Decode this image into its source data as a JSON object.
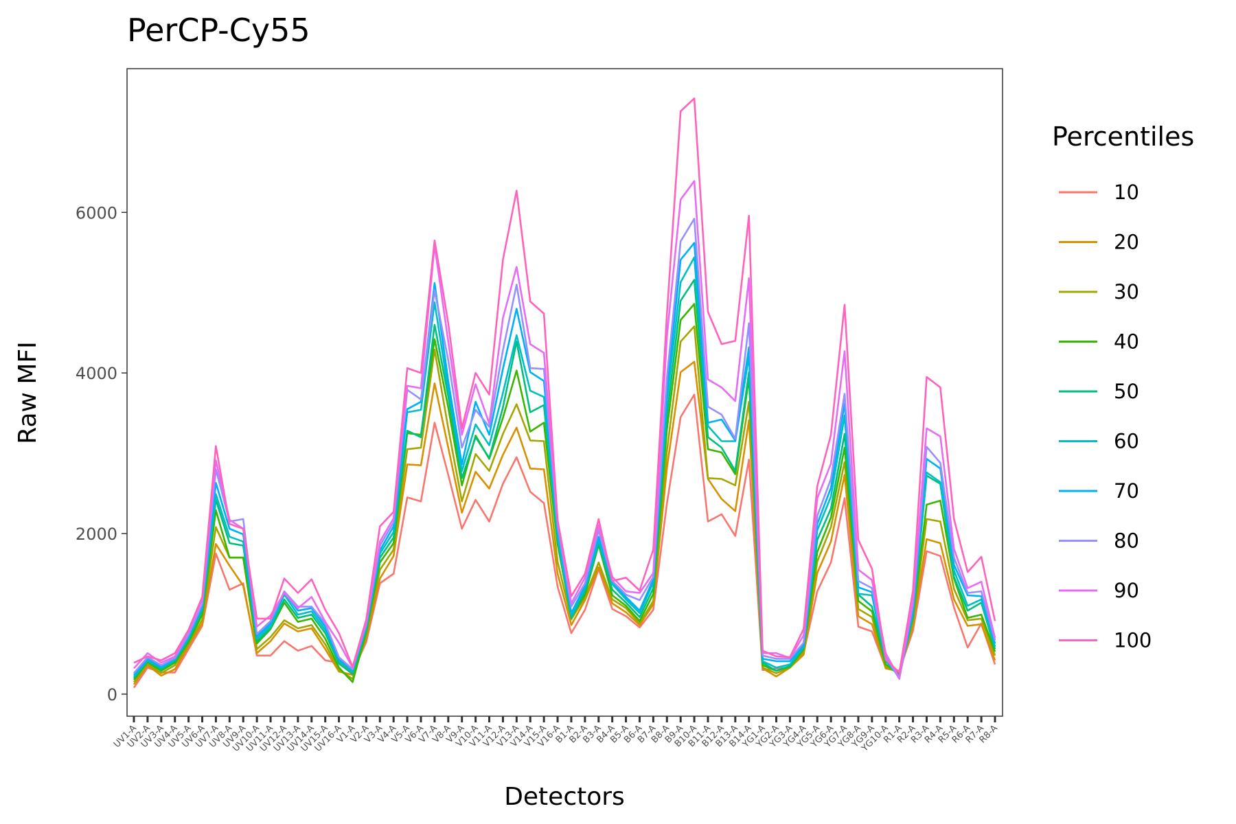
{
  "chart_data": {
    "type": "line",
    "title": "PerCP-Cy55",
    "xlabel": "Detectors",
    "ylabel": "Raw MFI",
    "y_ticks": [
      0,
      2000,
      4000,
      6000
    ],
    "ylim": [
      -275,
      7790
    ],
    "grid": false,
    "legend": {
      "title": "Percentiles",
      "position": "right"
    },
    "categories": [
      "UV1-A",
      "UV2-A",
      "UV3-A",
      "UV4-A",
      "UV5-A",
      "UV6-A",
      "UV7-A",
      "UV8-A",
      "UV9-A",
      "UV10-A",
      "UV11-A",
      "UV12-A",
      "UV13-A",
      "UV14-A",
      "UV15-A",
      "UV16-A",
      "V1-A",
      "V2-A",
      "V3-A",
      "V4-A",
      "V5-A",
      "V6-A",
      "V7-A",
      "V8-A",
      "V9-A",
      "V10-A",
      "V11-A",
      "V12-A",
      "V13-A",
      "V14-A",
      "V15-A",
      "V16-A",
      "B1-A",
      "B2-A",
      "B3-A",
      "B4-A",
      "B5-A",
      "B6-A",
      "B7-A",
      "B8-A",
      "B9-A",
      "B10-A",
      "B11-A",
      "B12-A",
      "B13-A",
      "B14-A",
      "YG1-A",
      "YG2-A",
      "YG3-A",
      "YG4-A",
      "YG5-A",
      "YG6-A",
      "YG7-A",
      "YG8-A",
      "YG9-A",
      "YG10-A",
      "R1-A",
      "R2-A",
      "R3-A",
      "R4-A",
      "R5-A",
      "R6-A",
      "R7-A",
      "R8-A"
    ],
    "series": [
      {
        "name": "10",
        "color": "#F8766D",
        "values": [
          80,
          330,
          270,
          270,
          560,
          850,
          1750,
          1300,
          1380,
          480,
          480,
          660,
          540,
          600,
          420,
          390,
          270,
          650,
          1380,
          1500,
          2450,
          2400,
          3380,
          2730,
          2060,
          2420,
          2150,
          2620,
          2950,
          2520,
          2380,
          1340,
          760,
          1050,
          1560,
          1060,
          970,
          830,
          1050,
          2380,
          3450,
          3730,
          2150,
          2240,
          1970,
          2920,
          300,
          320,
          330,
          510,
          1280,
          1640,
          2440,
          840,
          780,
          330,
          290,
          790,
          1780,
          1720,
          1080,
          580,
          880,
          370
        ]
      },
      {
        "name": "20",
        "color": "#D89000",
        "values": [
          120,
          360,
          230,
          310,
          600,
          880,
          1870,
          1600,
          1350,
          510,
          660,
          880,
          780,
          820,
          560,
          280,
          240,
          700,
          1440,
          1720,
          2860,
          2850,
          3870,
          3070,
          2260,
          2770,
          2560,
          2980,
          3320,
          2810,
          2800,
          1500,
          860,
          1170,
          1580,
          1130,
          1020,
          860,
          1120,
          2820,
          4010,
          4140,
          2680,
          2430,
          2280,
          3410,
          320,
          220,
          330,
          490,
          1510,
          1900,
          2730,
          970,
          870,
          320,
          280,
          850,
          1930,
          1880,
          1180,
          850,
          870,
          420
        ]
      },
      {
        "name": "30",
        "color": "#A3A500",
        "values": [
          150,
          380,
          260,
          360,
          620,
          930,
          2080,
          1700,
          1700,
          560,
          710,
          920,
          820,
          860,
          620,
          300,
          190,
          730,
          1550,
          1800,
          3050,
          3070,
          4290,
          3310,
          2400,
          2990,
          2780,
          3240,
          3610,
          3160,
          3150,
          1650,
          930,
          1210,
          1640,
          1180,
          1070,
          880,
          1160,
          3030,
          4390,
          4580,
          2690,
          2680,
          2600,
          3640,
          330,
          260,
          330,
          530,
          1650,
          2080,
          2890,
          1060,
          960,
          340,
          260,
          900,
          2180,
          2150,
          1310,
          920,
          940,
          480
        ]
      },
      {
        "name": "40",
        "color": "#39B600",
        "values": [
          180,
          400,
          290,
          390,
          650,
          990,
          2290,
          1700,
          1700,
          630,
          810,
          1140,
          900,
          940,
          690,
          330,
          150,
          780,
          1640,
          1880,
          3250,
          3230,
          4420,
          3570,
          2600,
          3220,
          2930,
          3440,
          4030,
          3270,
          3380,
          1870,
          960,
          1240,
          1860,
          1230,
          1100,
          910,
          1250,
          3300,
          4660,
          4860,
          3050,
          3010,
          2740,
          3940,
          360,
          290,
          340,
          560,
          1770,
          2200,
          3070,
          1160,
          1030,
          370,
          250,
          960,
          2360,
          2410,
          1440,
          950,
          990,
          530
        ]
      },
      {
        "name": "50",
        "color": "#00BF7D",
        "values": [
          200,
          410,
          310,
          410,
          680,
          1040,
          2420,
          1880,
          1850,
          660,
          820,
          1180,
          950,
          990,
          760,
          380,
          250,
          810,
          1700,
          1950,
          3280,
          3200,
          4600,
          3710,
          2690,
          3200,
          2940,
          3570,
          4390,
          3510,
          3600,
          1930,
          950,
          1280,
          1870,
          1300,
          1140,
          960,
          1320,
          3470,
          4900,
          5160,
          3200,
          3070,
          2780,
          4010,
          390,
          290,
          350,
          580,
          1920,
          2310,
          3240,
          1240,
          1090,
          410,
          230,
          980,
          2720,
          2620,
          1460,
          1040,
          1140,
          560
        ]
      },
      {
        "name": "60",
        "color": "#00BFC4",
        "values": [
          220,
          420,
          330,
          430,
          700,
          1070,
          2490,
          1960,
          1900,
          690,
          850,
          1240,
          990,
          1030,
          800,
          410,
          280,
          830,
          1750,
          2020,
          3510,
          3540,
          4880,
          3790,
          2780,
          3360,
          3100,
          3750,
          4470,
          3780,
          3700,
          1960,
          980,
          1320,
          1920,
          1370,
          1180,
          1010,
          1390,
          3660,
          5130,
          5440,
          3340,
          3150,
          3150,
          4210,
          410,
          330,
          370,
          590,
          2040,
          2460,
          3470,
          1250,
          1230,
          420,
          210,
          1010,
          2760,
          2640,
          1540,
          1100,
          1180,
          590
        ]
      },
      {
        "name": "70",
        "color": "#00B0F6",
        "values": [
          240,
          440,
          340,
          440,
          720,
          1090,
          2630,
          2060,
          1990,
          720,
          880,
          1270,
          1040,
          1070,
          840,
          430,
          300,
          850,
          1790,
          2090,
          3550,
          3640,
          5120,
          3900,
          2860,
          3640,
          3230,
          4050,
          4800,
          4010,
          3900,
          2040,
          1010,
          1350,
          1960,
          1400,
          1210,
          1040,
          1430,
          3790,
          5410,
          5620,
          3380,
          3420,
          3160,
          4320,
          440,
          410,
          410,
          610,
          2120,
          2570,
          3620,
          1330,
          1270,
          450,
          200,
          1050,
          2930,
          2810,
          1610,
          1230,
          1220,
          630
        ]
      },
      {
        "name": "80",
        "color": "#9590FF",
        "values": [
          260,
          460,
          360,
          450,
          740,
          1120,
          2800,
          2150,
          2180,
          750,
          910,
          1280,
          1090,
          1090,
          880,
          460,
          310,
          870,
          1850,
          2140,
          3790,
          3670,
          5030,
          4160,
          3070,
          3540,
          3330,
          4280,
          5100,
          4060,
          4050,
          2100,
          1090,
          1380,
          2040,
          1410,
          1240,
          1170,
          1460,
          3950,
          5640,
          5920,
          3580,
          3480,
          3180,
          4620,
          480,
          440,
          440,
          640,
          2220,
          2680,
          3740,
          1410,
          1320,
          470,
          190,
          1120,
          3080,
          2880,
          1700,
          1260,
          1280,
          670
        ]
      },
      {
        "name": "90",
        "color": "#E76BF3",
        "values": [
          320,
          510,
          390,
          470,
          790,
          1180,
          2910,
          2170,
          2060,
          840,
          980,
          1260,
          1070,
          1210,
          900,
          640,
          330,
          900,
          1900,
          2190,
          3840,
          3810,
          5590,
          4390,
          3230,
          3860,
          3370,
          4680,
          5320,
          4360,
          4250,
          2160,
          1130,
          1450,
          2100,
          1460,
          1280,
          1260,
          1510,
          4460,
          6160,
          6390,
          3920,
          3820,
          3650,
          5180,
          510,
          510,
          450,
          730,
          2440,
          2870,
          4270,
          1550,
          1420,
          510,
          200,
          1150,
          3310,
          3210,
          1810,
          1320,
          1400,
          700
        ]
      },
      {
        "name": "100",
        "color": "#FF62BC",
        "values": [
          390,
          470,
          420,
          510,
          800,
          1210,
          3090,
          2120,
          2060,
          940,
          940,
          1440,
          1260,
          1430,
          1050,
          760,
          340,
          930,
          2090,
          2270,
          4060,
          4000,
          5650,
          4620,
          3310,
          4000,
          3730,
          5410,
          6270,
          4890,
          4740,
          2170,
          1220,
          1500,
          2180,
          1410,
          1450,
          1290,
          1800,
          4740,
          7260,
          7420,
          4760,
          4360,
          4400,
          5960,
          540,
          470,
          460,
          810,
          2590,
          3230,
          4850,
          1920,
          1560,
          430,
          270,
          1290,
          3950,
          3820,
          2180,
          1520,
          1710,
          910
        ]
      }
    ]
  }
}
